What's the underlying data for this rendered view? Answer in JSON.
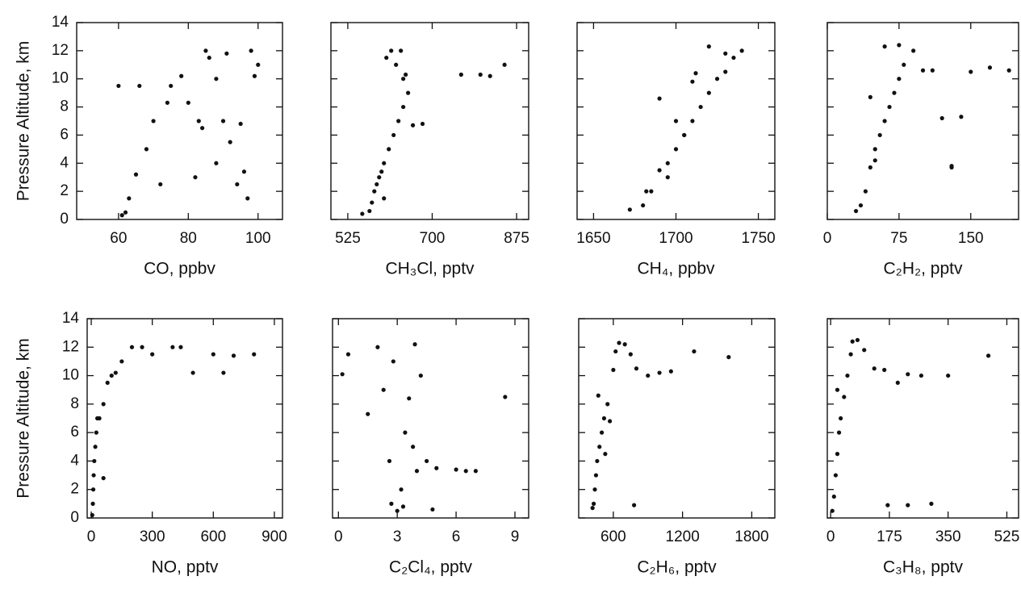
{
  "chart_data": [
    {
      "type": "scatter",
      "color": "#111111",
      "ylabel": "Pressure Altitude,  km",
      "xlabel": "CO,  ppbv",
      "xlim": [
        48,
        107
      ],
      "xticks": [
        60,
        80,
        100
      ],
      "ylim": [
        0,
        14
      ],
      "yticks": [
        0,
        2,
        4,
        6,
        8,
        10,
        12,
        14
      ],
      "x": [
        61,
        62,
        63,
        65,
        68,
        70,
        72,
        75,
        78,
        80,
        82,
        84,
        85,
        86,
        88,
        90,
        92,
        94,
        95,
        96,
        98,
        100,
        66,
        74,
        88,
        97,
        60,
        83,
        91,
        99
      ],
      "y": [
        0.3,
        0.5,
        1.5,
        3.2,
        5,
        7,
        2.5,
        9.5,
        10.2,
        8.3,
        3,
        6.5,
        12,
        11.5,
        10,
        7,
        5.5,
        2.5,
        6.8,
        3.4,
        12,
        11,
        9.5,
        8.3,
        4,
        1.5,
        9.5,
        7,
        11.8,
        10.2
      ]
    },
    {
      "type": "scatter",
      "color": "#111111",
      "xlabel": "CH₃Cl,  pptv",
      "xlim": [
        490,
        900
      ],
      "xticks": [
        525,
        700,
        875
      ],
      "ylim": [
        0,
        14
      ],
      "yticks": [
        0,
        2,
        4,
        6,
        8,
        10,
        12,
        14
      ],
      "x": [
        555,
        570,
        575,
        580,
        590,
        600,
        610,
        620,
        630,
        640,
        650,
        640,
        625,
        615,
        605,
        595,
        585,
        645,
        660,
        680,
        760,
        800,
        820,
        850,
        635,
        600
      ],
      "y": [
        0.4,
        0.6,
        1.2,
        2,
        3,
        4,
        5,
        6,
        7,
        8,
        9,
        10,
        11,
        12,
        11.5,
        3.4,
        2.5,
        10.3,
        6.7,
        6.8,
        10.3,
        10.3,
        10.2,
        11,
        12,
        1.5
      ]
    },
    {
      "type": "scatter",
      "color": "#111111",
      "xlabel": "CH₄,  ppbv",
      "xlim": [
        1640,
        1760
      ],
      "xticks": [
        1650,
        1700,
        1750
      ],
      "ylim": [
        0,
        14
      ],
      "yticks": [
        0,
        2,
        4,
        6,
        8,
        10,
        12,
        14
      ],
      "x": [
        1672,
        1680,
        1685,
        1690,
        1695,
        1700,
        1705,
        1710,
        1715,
        1720,
        1725,
        1730,
        1735,
        1740,
        1690,
        1700,
        1710,
        1720,
        1695,
        1705,
        1730,
        1682,
        1712
      ],
      "y": [
        0.7,
        1,
        2,
        3.5,
        4,
        5,
        6,
        7,
        8,
        9,
        10,
        10.5,
        11.5,
        12,
        8.6,
        7,
        9.8,
        12.3,
        3,
        6,
        11.8,
        2,
        10.4
      ]
    },
    {
      "type": "scatter",
      "color": "#111111",
      "xlabel": "C₂H₂,  pptv",
      "xlim": [
        0,
        200
      ],
      "xticks": [
        0,
        75,
        150
      ],
      "ylim": [
        0,
        14
      ],
      "yticks": [
        0,
        2,
        4,
        6,
        8,
        10,
        12,
        14
      ],
      "x": [
        30,
        35,
        40,
        45,
        50,
        55,
        60,
        65,
        70,
        75,
        80,
        90,
        100,
        110,
        120,
        130,
        140,
        150,
        170,
        190,
        45,
        60,
        75,
        130,
        50
      ],
      "y": [
        0.6,
        1,
        2,
        3.7,
        5,
        6,
        7,
        8,
        9,
        10,
        11,
        12,
        10.6,
        10.6,
        7.2,
        3.8,
        7.3,
        10.5,
        10.8,
        10.6,
        8.7,
        12.3,
        12.4,
        3.7,
        4.2
      ]
    },
    {
      "type": "scatter",
      "color": "#111111",
      "ylabel": "Pressure Altitude,  km",
      "xlabel": "NO,  pptv",
      "xlim": [
        -20,
        940
      ],
      "xticks": [
        0,
        300,
        600,
        900
      ],
      "ylim": [
        0,
        14
      ],
      "yticks": [
        0,
        2,
        4,
        6,
        8,
        10,
        12,
        14
      ],
      "x": [
        5,
        8,
        10,
        12,
        15,
        20,
        25,
        30,
        40,
        60,
        80,
        100,
        150,
        200,
        300,
        400,
        500,
        600,
        650,
        700,
        800,
        120,
        250,
        440,
        60
      ],
      "y": [
        0.2,
        1,
        2,
        3,
        4,
        5,
        6,
        7,
        7,
        8,
        9.5,
        10,
        11,
        12,
        11.5,
        12,
        10.2,
        11.5,
        10.2,
        11.4,
        11.5,
        10.2,
        12,
        12,
        2.8
      ]
    },
    {
      "type": "scatter",
      "color": "#111111",
      "xlabel": "C₂Cl₄,  pptv",
      "xlim": [
        -0.3,
        9.7
      ],
      "xticks": [
        0,
        3,
        6,
        9
      ],
      "ylim": [
        0,
        14
      ],
      "yticks": [
        0,
        2,
        4,
        6,
        8,
        10,
        12,
        14
      ],
      "x": [
        0.2,
        0.5,
        1.5,
        2,
        2.3,
        2.6,
        2.8,
        3,
        3.2,
        3.4,
        3.6,
        3.8,
        4,
        4.2,
        4.5,
        5,
        6,
        6.5,
        7,
        8.5,
        2.7,
        3.3,
        4.8,
        3.9
      ],
      "y": [
        10.1,
        11.5,
        7.3,
        12,
        9,
        4,
        11,
        0.5,
        2,
        6,
        8.4,
        5,
        3.3,
        10,
        4,
        3.5,
        3.4,
        3.3,
        3.3,
        8.5,
        1,
        0.8,
        0.6,
        12.2
      ]
    },
    {
      "type": "scatter",
      "color": "#111111",
      "xlabel": "C₂H₆,  pptv",
      "xlim": [
        300,
        2000
      ],
      "xticks": [
        600,
        1200,
        1800
      ],
      "ylim": [
        0,
        14
      ],
      "yticks": [
        0,
        2,
        4,
        6,
        8,
        10,
        12,
        14
      ],
      "x": [
        420,
        430,
        440,
        450,
        460,
        480,
        500,
        520,
        550,
        570,
        600,
        620,
        650,
        700,
        750,
        800,
        900,
        1000,
        1100,
        1300,
        1600,
        780,
        470,
        530
      ],
      "y": [
        0.7,
        1,
        2,
        3,
        4,
        5,
        6,
        7,
        8,
        6.8,
        10.4,
        11.7,
        12.3,
        12.2,
        11.5,
        10.5,
        10,
        10.2,
        10.3,
        11.7,
        11.3,
        0.9,
        8.6,
        4.5
      ]
    },
    {
      "type": "scatter",
      "color": "#111111",
      "xlabel": "C₃H₈,  pptv",
      "xlim": [
        -10,
        560
      ],
      "xticks": [
        0,
        175,
        350,
        525
      ],
      "ylim": [
        0,
        14
      ],
      "yticks": [
        0,
        2,
        4,
        6,
        8,
        10,
        12,
        14
      ],
      "x": [
        5,
        10,
        15,
        20,
        25,
        30,
        40,
        50,
        60,
        80,
        100,
        130,
        160,
        200,
        230,
        270,
        350,
        470,
        65,
        170,
        230,
        300,
        20
      ],
      "y": [
        0.5,
        1.5,
        3,
        4.5,
        6,
        7,
        8.5,
        10,
        11.5,
        12.5,
        11.8,
        10.5,
        10.4,
        9.5,
        10.1,
        10,
        10,
        11.4,
        12.4,
        0.9,
        0.9,
        1,
        9
      ]
    }
  ]
}
